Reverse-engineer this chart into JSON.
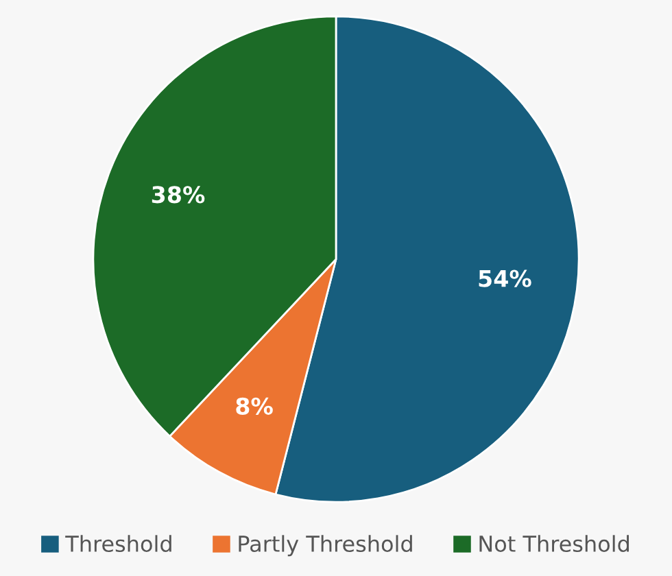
{
  "chart_data": {
    "type": "pie",
    "categories": [
      "Threshold",
      "Partly Threshold",
      "Not Threshold"
    ],
    "values": [
      54,
      8,
      38
    ],
    "colors": [
      "#175e7e",
      "#ec7431",
      "#1c6b27"
    ],
    "value_labels": [
      "54%",
      "8%",
      "38%"
    ],
    "legend": "bottom"
  }
}
